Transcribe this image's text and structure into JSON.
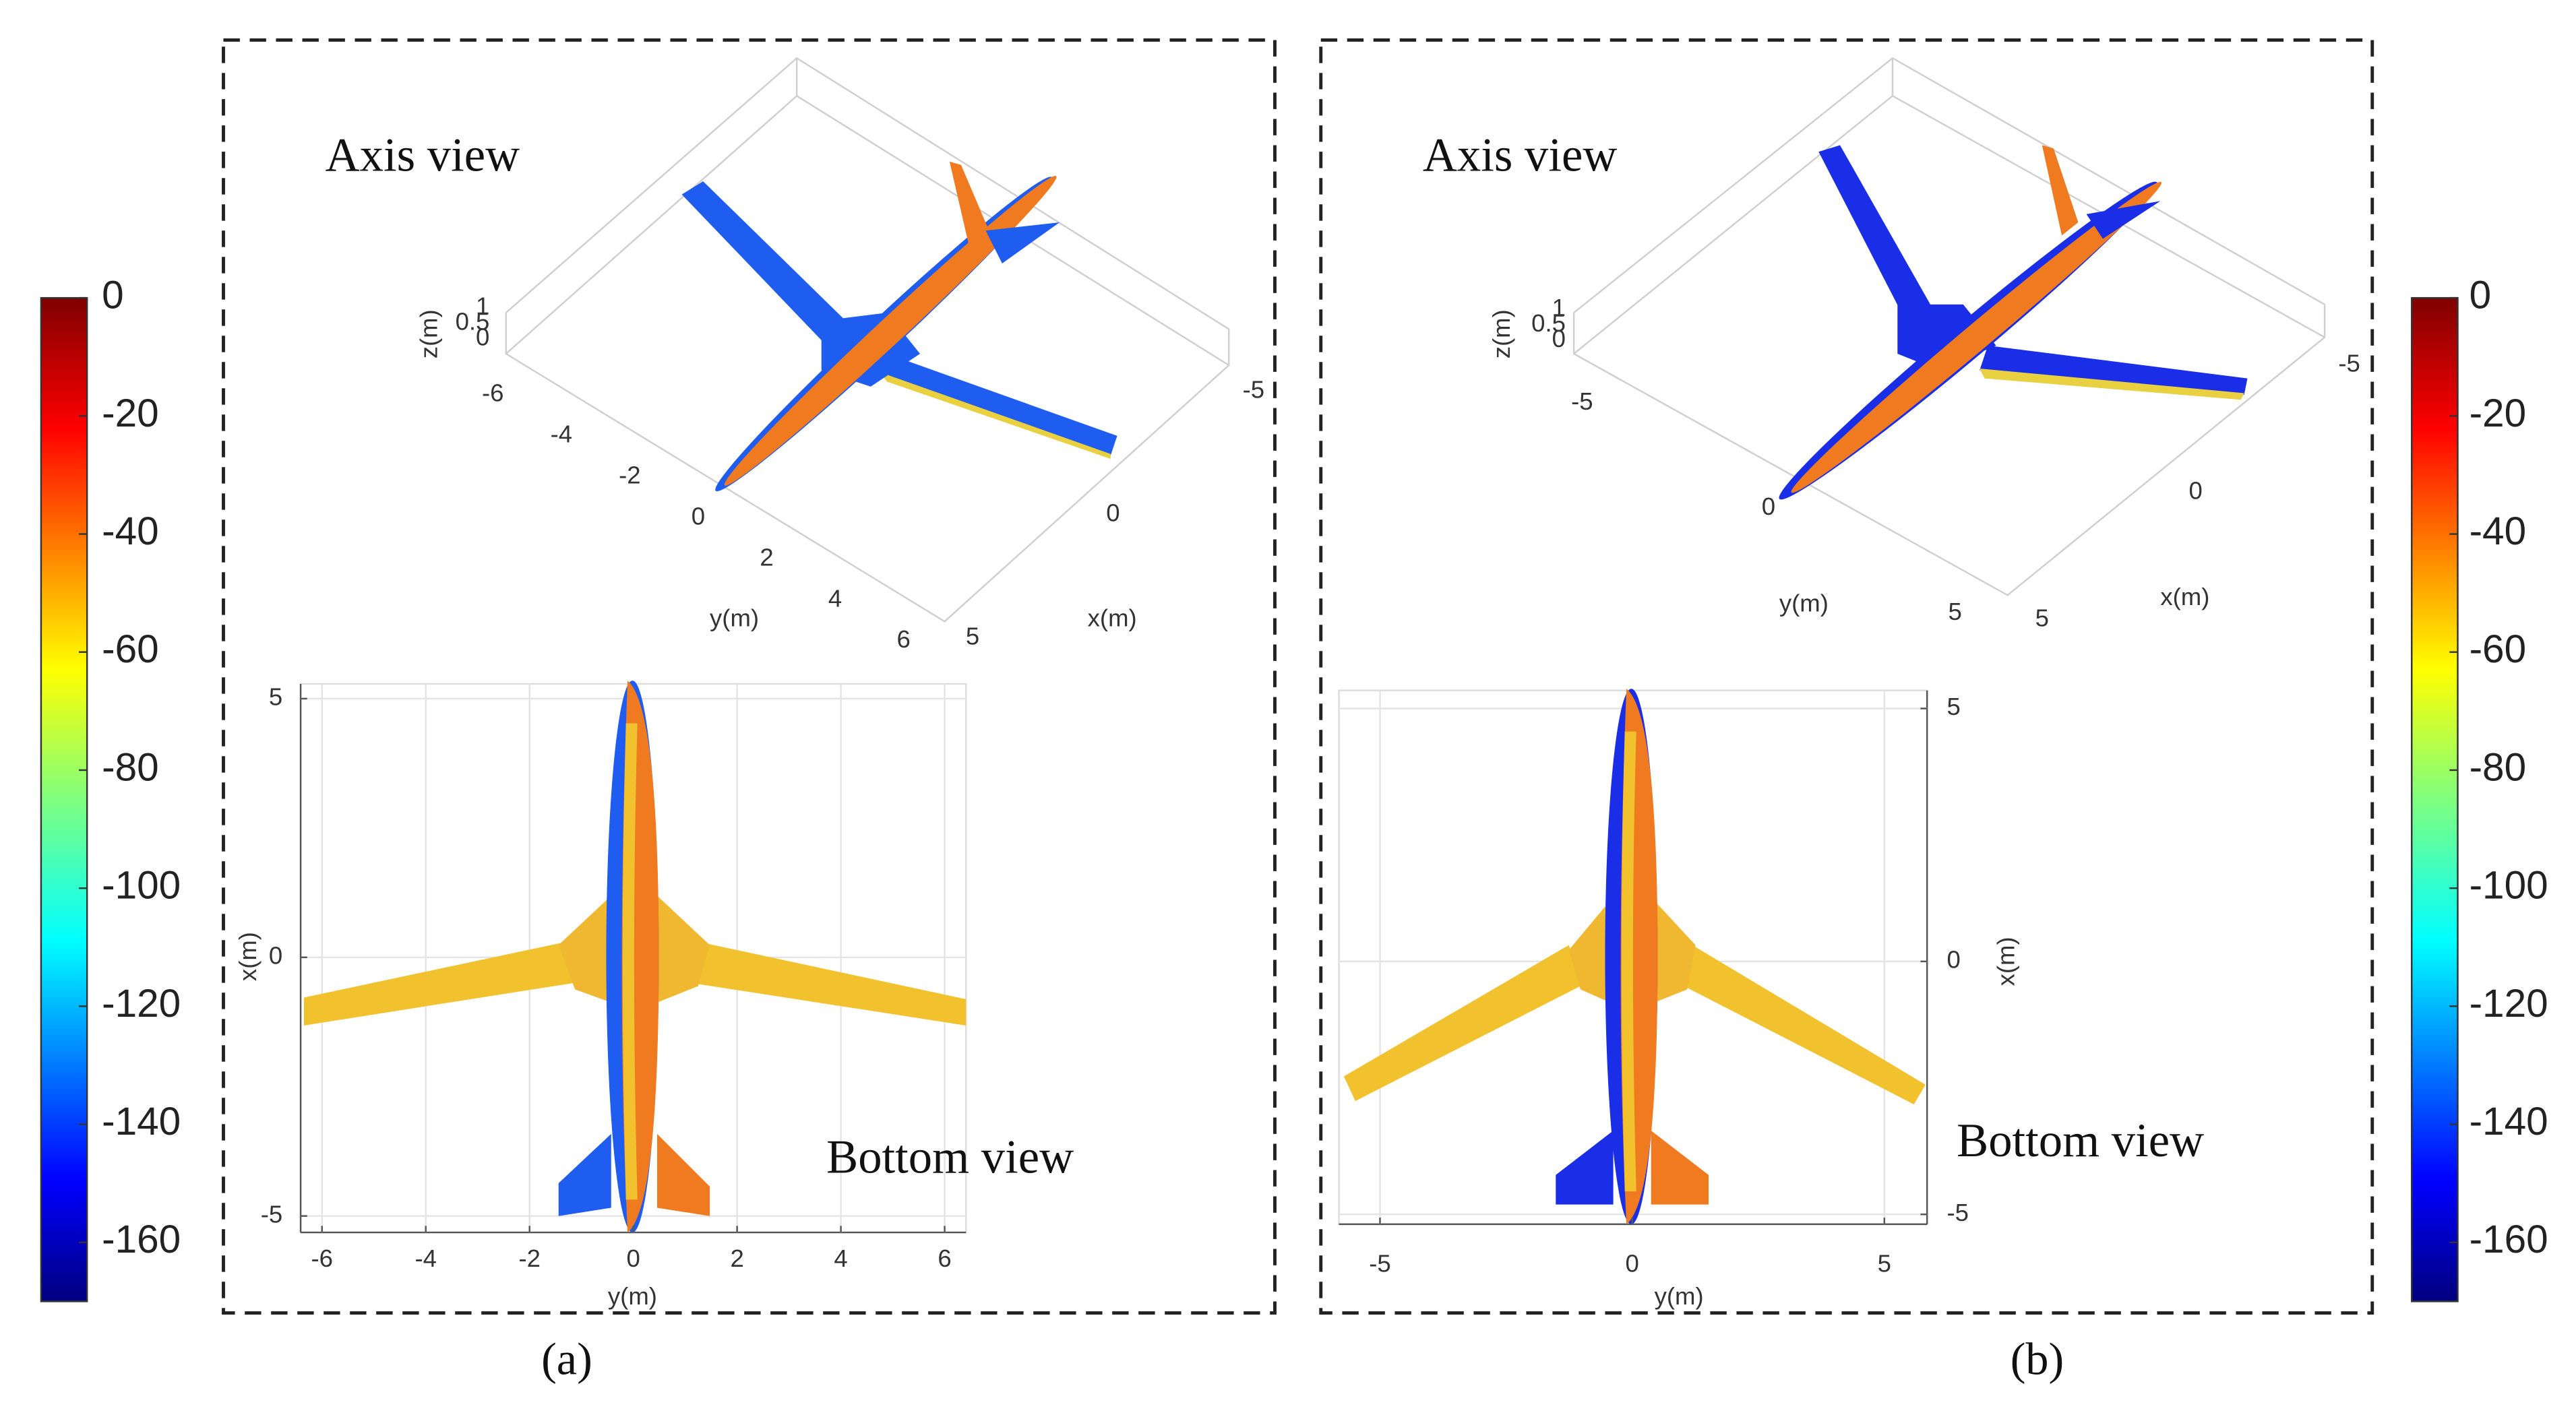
{
  "colorbar": {
    "ticks": [
      0,
      -20,
      -40,
      -60,
      -80,
      -100,
      -120,
      -140,
      -160
    ],
    "lim": [
      -170,
      0
    ]
  },
  "panels": [
    {
      "label": "(a)",
      "axis_view": {
        "title": "Axis view",
        "x_label": "x(m)",
        "y_label": "y(m)",
        "z_label": "z(m)",
        "x_ticks": [
          5,
          0,
          -5
        ],
        "y_ticks": [
          -6,
          -4,
          -2,
          0,
          2,
          4,
          6
        ],
        "z_ticks": [
          0,
          0.5,
          1
        ]
      },
      "bottom_view": {
        "title": "Bottom view",
        "horizontal_label": "y(m)",
        "vertical_label": "x(m)",
        "horizontal_ticks": [
          -6,
          -4,
          -2,
          0,
          2,
          4,
          6
        ],
        "vertical_ticks": [
          5,
          0,
          -5
        ]
      }
    },
    {
      "label": "(b)",
      "axis_view": {
        "title": "Axis view",
        "x_label": "x(m)",
        "y_label": "y(m)",
        "z_label": "z(m)",
        "x_ticks": [
          5,
          0,
          -5
        ],
        "y_ticks": [
          -5,
          0,
          5
        ],
        "z_ticks": [
          0,
          0.5,
          1
        ]
      },
      "bottom_view": {
        "title": "Bottom view",
        "horizontal_label": "y(m)",
        "vertical_label": "x(m)",
        "horizontal_ticks": [
          -5,
          0,
          5
        ],
        "vertical_ticks": [
          5,
          0,
          -5
        ]
      }
    }
  ]
}
